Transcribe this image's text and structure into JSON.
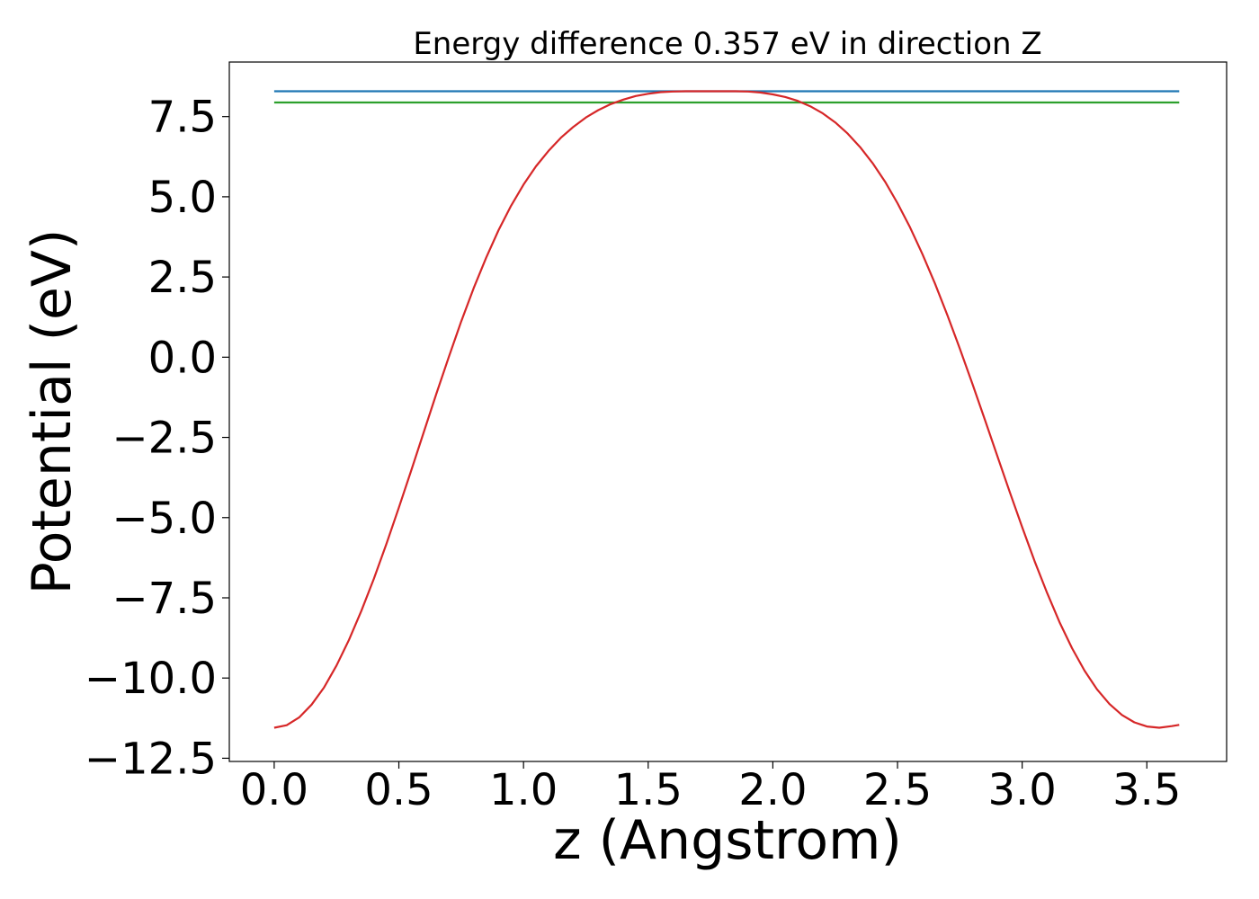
{
  "chart_data": {
    "type": "line",
    "title": "Energy difference 0.357 eV in direction Z",
    "xlabel": "z (Angstrom)",
    "ylabel": "Potential (eV)",
    "xlim": [
      -0.18,
      3.82
    ],
    "ylim": [
      -12.6,
      9.2
    ],
    "x_ticks": [
      0.0,
      0.5,
      1.0,
      1.5,
      2.0,
      2.5,
      3.0,
      3.5
    ],
    "x_tick_labels": [
      "0.0",
      "0.5",
      "1.0",
      "1.5",
      "2.0",
      "2.5",
      "3.0",
      "3.5"
    ],
    "y_ticks": [
      7.5,
      5.0,
      2.5,
      0.0,
      -2.5,
      -5.0,
      -7.5,
      -10.0,
      -12.5
    ],
    "y_tick_labels": [
      "7.5",
      "5.0",
      "2.5",
      "0.0",
      "−2.5",
      "−5.0",
      "−7.5",
      "−10.0",
      "−12.5"
    ],
    "grid": false,
    "series": [
      {
        "color": "#1f77b4",
        "x": [
          0.0,
          3.63
        ],
        "y": [
          8.29,
          8.29
        ]
      },
      {
        "color": "#2ca02c",
        "x": [
          0.0,
          3.63
        ],
        "y": [
          7.94,
          7.94
        ]
      },
      {
        "color": "#d62728",
        "x": [
          0.0,
          0.05,
          0.1,
          0.15,
          0.2,
          0.25,
          0.3,
          0.35,
          0.4,
          0.45,
          0.5,
          0.55,
          0.6,
          0.65,
          0.7,
          0.75,
          0.8,
          0.85,
          0.9,
          0.95,
          1.0,
          1.05,
          1.1,
          1.15,
          1.2,
          1.25,
          1.3,
          1.35,
          1.4,
          1.45,
          1.5,
          1.55,
          1.6,
          1.65,
          1.7,
          1.75,
          1.8,
          1.815,
          1.85,
          1.9,
          1.95,
          2.0,
          2.05,
          2.1,
          2.15,
          2.2,
          2.25,
          2.3,
          2.35,
          2.4,
          2.45,
          2.5,
          2.55,
          2.6,
          2.65,
          2.7,
          2.75,
          2.8,
          2.85,
          2.9,
          2.95,
          3.0,
          3.05,
          3.1,
          3.15,
          3.2,
          3.25,
          3.3,
          3.35,
          3.4,
          3.45,
          3.5,
          3.55,
          3.6,
          3.63
        ],
        "y": [
          -11.55,
          -11.47,
          -11.23,
          -10.83,
          -10.29,
          -9.61,
          -8.81,
          -7.9,
          -6.9,
          -5.82,
          -4.69,
          -3.52,
          -2.33,
          -1.15,
          0.0,
          1.11,
          2.15,
          3.1,
          3.96,
          4.72,
          5.38,
          5.95,
          6.43,
          6.84,
          7.18,
          7.47,
          7.7,
          7.89,
          8.03,
          8.14,
          8.21,
          8.26,
          8.28,
          8.29,
          8.29,
          8.29,
          8.29,
          8.29,
          8.29,
          8.28,
          8.25,
          8.19,
          8.11,
          7.99,
          7.82,
          7.6,
          7.32,
          6.97,
          6.55,
          6.05,
          5.47,
          4.8,
          4.05,
          3.21,
          2.3,
          1.31,
          0.27,
          -0.82,
          -1.94,
          -3.07,
          -4.2,
          -5.3,
          -6.36,
          -7.35,
          -8.26,
          -9.07,
          -9.77,
          -10.35,
          -10.81,
          -11.15,
          -11.38,
          -11.51,
          -11.55,
          -11.5,
          -11.46
        ]
      }
    ]
  }
}
